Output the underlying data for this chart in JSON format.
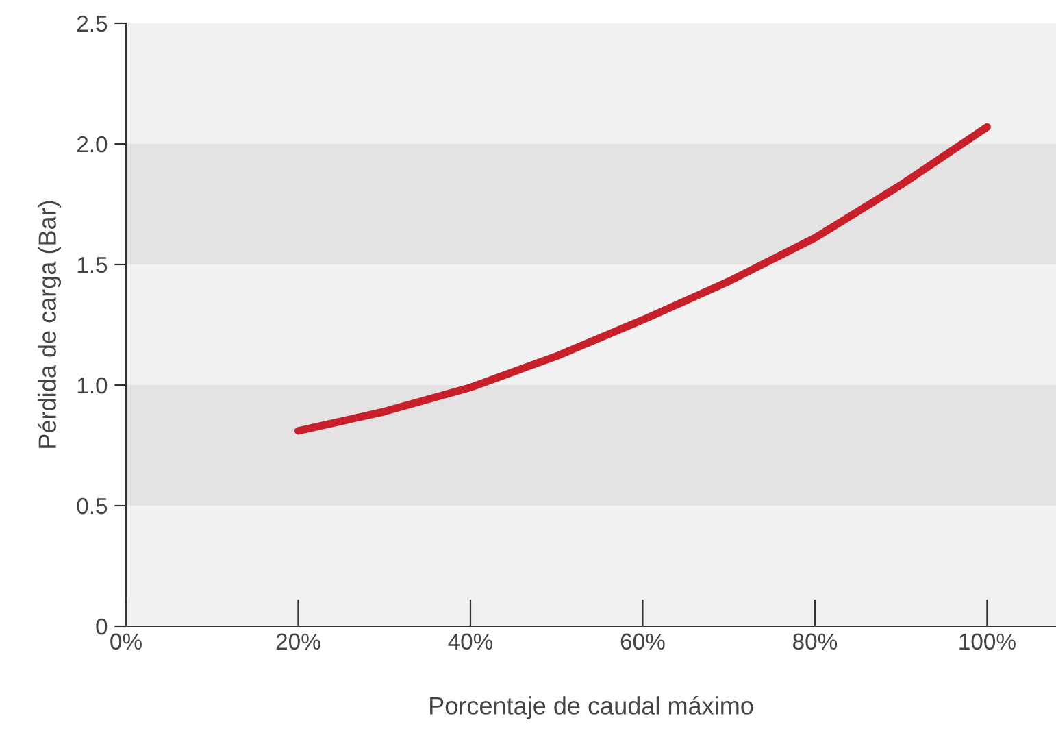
{
  "chart_data": {
    "type": "line",
    "xlabel": "Porcentaje de caudal máximo",
    "ylabel": "Pérdida de carga (Bar)",
    "x": [
      20,
      30,
      40,
      50,
      60,
      70,
      80,
      90,
      100
    ],
    "series": [
      {
        "color": "#c8202a",
        "values": [
          0.81,
          0.89,
          0.99,
          1.12,
          1.27,
          1.43,
          1.61,
          1.83,
          2.07
        ]
      }
    ],
    "xlim": [
      0,
      108
    ],
    "xticks": [
      {
        "value": 0,
        "label": "0%"
      },
      {
        "value": 20,
        "label": "20%"
      },
      {
        "value": 40,
        "label": "40%"
      },
      {
        "value": 60,
        "label": "60%"
      },
      {
        "value": 80,
        "label": "80%"
      },
      {
        "value": 100,
        "label": "100%"
      }
    ],
    "ylim": [
      0,
      2.5
    ],
    "yticks": [
      0,
      0.5,
      {
        "value": 1,
        "label": "1.0"
      },
      1.5,
      {
        "value": 2,
        "label": "2.0"
      },
      2.5
    ],
    "bands": [
      {
        "axis": "y",
        "from": 0.5,
        "to": 1.0,
        "color": "#e4e2e2"
      },
      {
        "axis": "y",
        "from": 1.5,
        "to": 2.0,
        "color": "#e4e2e2"
      }
    ],
    "grid": false,
    "marker": "none",
    "line_style": "solid"
  }
}
